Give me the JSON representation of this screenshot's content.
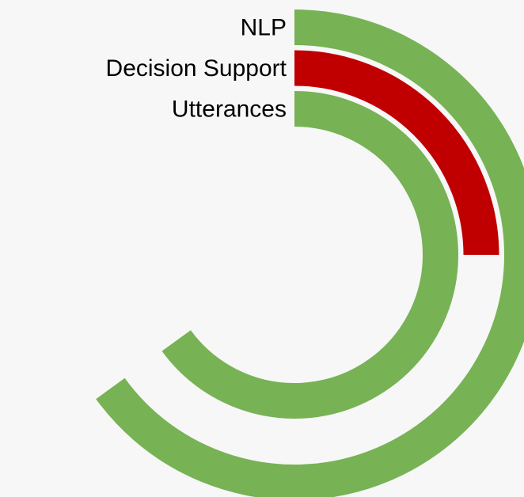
{
  "chart_data": {
    "type": "radial_bar",
    "categories": [
      "NLP",
      "Decision Support",
      "Utterances"
    ],
    "values": [
      65,
      25,
      65
    ],
    "colors": [
      "#77b255",
      "#c00000",
      "#77b255"
    ],
    "ylim": [
      0,
      100
    ]
  }
}
